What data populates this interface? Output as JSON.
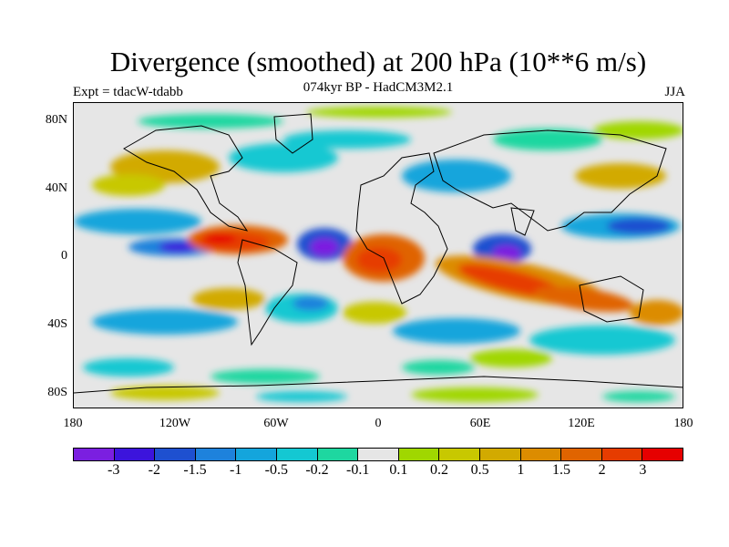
{
  "title": "Divergence (smoothed) at 200 hPa (10**6 m/s)",
  "subtitle": "074kyr BP - HadCM3M2.1",
  "experiment": "Expt = tdacW-tdabb",
  "season": "JJA",
  "map": {
    "projection": "cylindrical equidistant",
    "lat_labels": [
      "80N",
      "40N",
      "0",
      "40S",
      "80S"
    ],
    "lon_labels": [
      "180",
      "120W",
      "60W",
      "0",
      "60E",
      "120E",
      "180"
    ]
  },
  "colorbar": {
    "colors": [
      "#7b1fe0",
      "#3c14dc",
      "#1e50d0",
      "#1e82dc",
      "#14a5dc",
      "#14c8d2",
      "#1ed7a0",
      "#e6e6e6",
      "#a0d700",
      "#c8c800",
      "#d2aa00",
      "#dc8c00",
      "#e06400",
      "#e63c00",
      "#e60000"
    ],
    "labels": [
      "-3",
      "-2",
      "-1.5",
      "-1",
      "-0.5",
      "-0.2",
      "-0.1",
      "0.1",
      "0.2",
      "0.5",
      "1",
      "1.5",
      "2",
      "3"
    ]
  }
}
